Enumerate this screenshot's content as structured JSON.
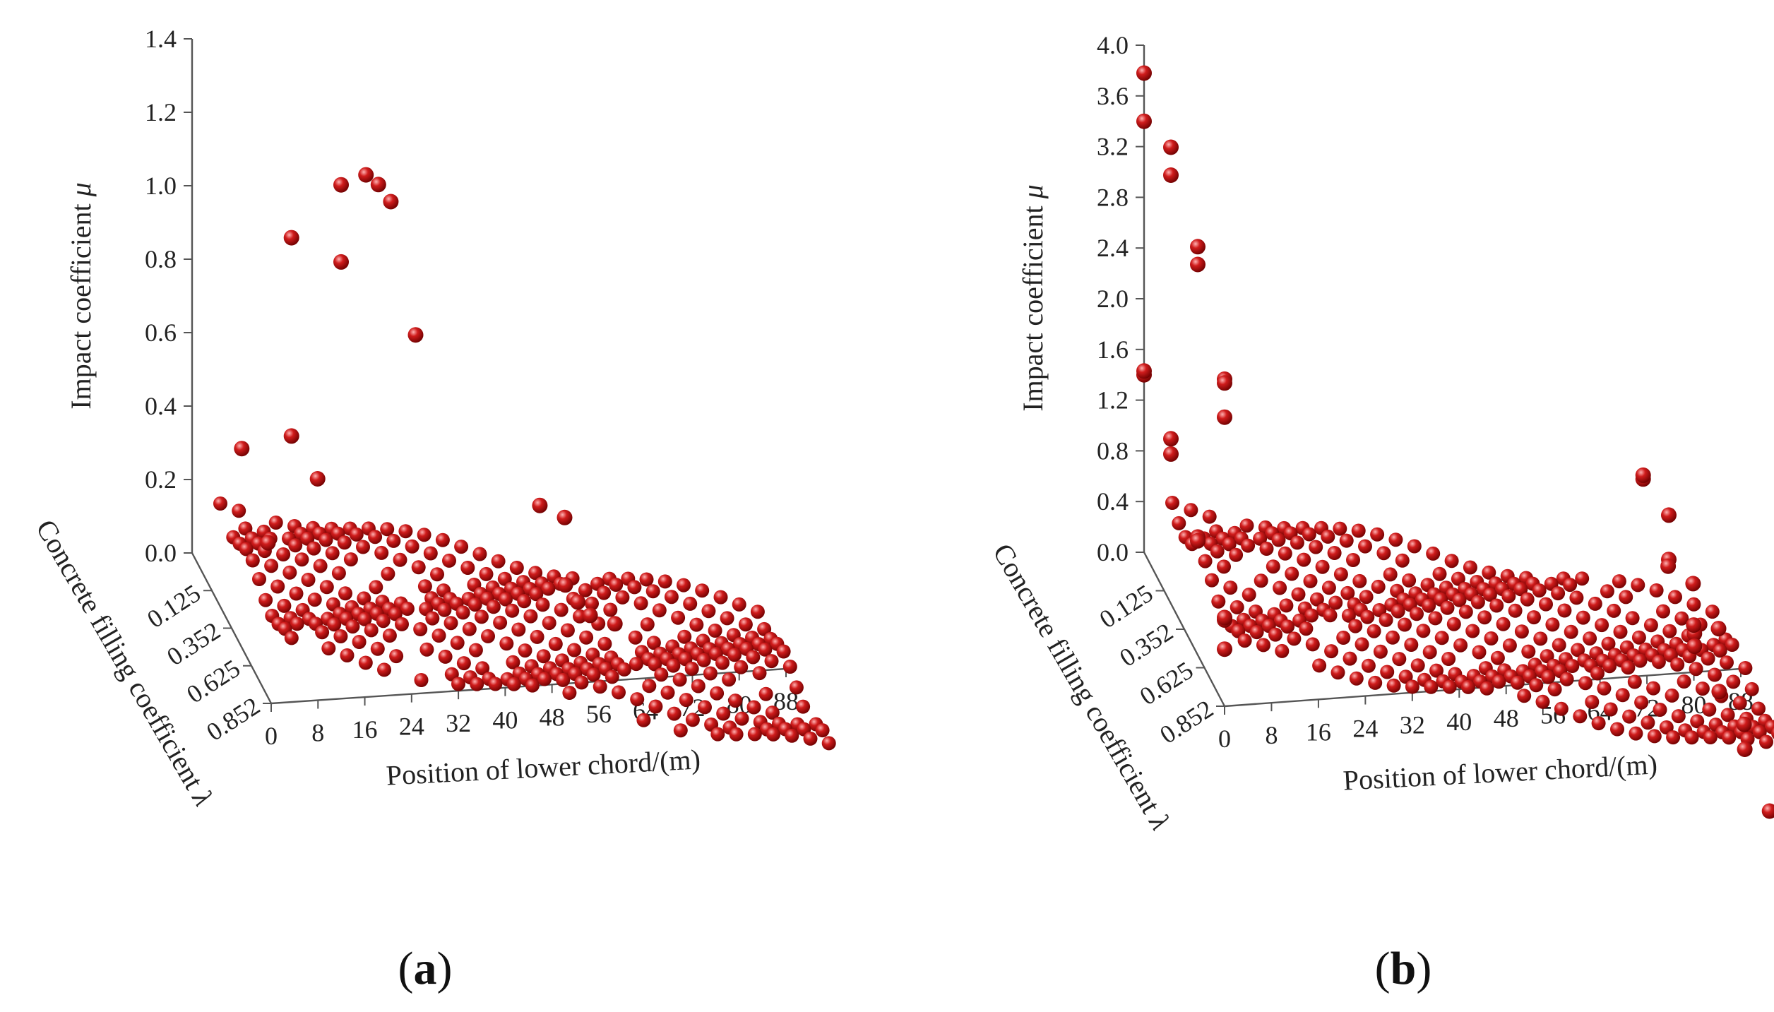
{
  "figure": {
    "point_color": "#d01c1c",
    "point_highlight": "#ffb3b3",
    "point_shadow": "#6e0000"
  },
  "chart_data": [
    {
      "type": "scatter",
      "panel_label": "(a)",
      "panel_letter": "a",
      "title": "",
      "xlabel": "Position of lower chord/(m)",
      "ylabel": "Concrete filling coefficient λ",
      "ylabel_main": "Concrete filling coefficient ",
      "ylabel_symbol": "λ",
      "zlabel": "Impact coefficient μ",
      "zlabel_main": "Impact coefficient ",
      "zlabel_symbol": "μ",
      "x_ticks": [
        "0",
        "8",
        "16",
        "24",
        "32",
        "40",
        "48",
        "56",
        "64",
        "72",
        "80",
        "88"
      ],
      "y_ticks": [
        "0.125",
        "0.352",
        "0.625",
        "0.852"
      ],
      "z_ticks": [
        "0.0",
        "0.2",
        "0.4",
        "0.6",
        "0.8",
        "1.0",
        "1.2",
        "1.4"
      ],
      "xlim": [
        0,
        88
      ],
      "zlim": [
        0,
        1.4
      ],
      "grid": false,
      "series": [
        {
          "values": [
            {
              "x": 8,
              "y": 0.125,
              "z": 0.31
            },
            {
              "x": 8,
              "y": 0.352,
              "z": 0.19
            },
            {
              "x": 16,
              "y": 0.125,
              "z": 0.37
            },
            {
              "x": 16,
              "y": 0.352,
              "z": 0.39
            },
            {
              "x": 16,
              "y": 0.125,
              "z": 0.91
            },
            {
              "x": 24,
              "y": 0.125,
              "z": 0.87
            },
            {
              "x": 24,
              "y": 0.125,
              "z": 1.08
            },
            {
              "x": 28,
              "y": 0.125,
              "z": 1.12
            },
            {
              "x": 30,
              "y": 0.125,
              "z": 1.1
            },
            {
              "x": 32,
              "y": 0.125,
              "z": 1.06
            },
            {
              "x": 36,
              "y": 0.125,
              "z": 0.71
            },
            {
              "x": 56,
              "y": 0.125,
              "z": 0.31
            },
            {
              "x": 56,
              "y": 0.352,
              "z": 0.23
            },
            {
              "x": 58,
              "y": 0.352,
              "z": 0.19
            },
            {
              "x": 60,
              "y": 0.125,
              "z": 0.29
            },
            {
              "x": 60,
              "y": 0.352,
              "z": 0.16
            },
            {
              "x": 64,
              "y": 0.352,
              "z": 0.15
            }
          ]
        }
      ]
    },
    {
      "type": "scatter",
      "panel_label": "(b)",
      "panel_letter": "b",
      "title": "",
      "xlabel": "Position of lower chord/(m)",
      "ylabel": "Concrete filling coefficient λ",
      "ylabel_main": "Concrete filling coefficient ",
      "ylabel_symbol": "λ",
      "zlabel": "Impact coefficient μ",
      "zlabel_main": "Impact coefficient ",
      "zlabel_symbol": "μ",
      "x_ticks": [
        "0",
        "8",
        "16",
        "24",
        "32",
        "40",
        "48",
        "56",
        "64",
        "72",
        "80",
        "88"
      ],
      "y_ticks": [
        "0.125",
        "0.352",
        "0.625",
        "0.852"
      ],
      "z_ticks": [
        "0.0",
        "0.4",
        "0.8",
        "1.2",
        "1.6",
        "2.0",
        "2.4",
        "2.8",
        "3.2",
        "3.6",
        "4.0"
      ],
      "xlim": [
        0,
        88
      ],
      "zlim": [
        0,
        4.0
      ],
      "grid": false,
      "series": [
        {
          "values": [
            {
              "x": 0,
              "y": 0.125,
              "z": 3.4
            },
            {
              "x": 0,
              "y": 0.125,
              "z": 3.78
            },
            {
              "x": 0,
              "y": 0.352,
              "z": 3.6
            },
            {
              "x": 0,
              "y": 0.352,
              "z": 3.38
            },
            {
              "x": 0,
              "y": 0.625,
              "z": 3.22
            },
            {
              "x": 0,
              "y": 0.625,
              "z": 3.08
            },
            {
              "x": 0,
              "y": 0.852,
              "z": 2.58
            },
            {
              "x": 0,
              "y": 0.852,
              "z": 2.55
            },
            {
              "x": 0,
              "y": 0.852,
              "z": 2.28
            },
            {
              "x": 0,
              "y": 0.125,
              "z": 1.4
            },
            {
              "x": 0,
              "y": 0.125,
              "z": 1.43
            },
            {
              "x": 0,
              "y": 0.352,
              "z": 1.3
            },
            {
              "x": 0,
              "y": 0.352,
              "z": 1.18
            },
            {
              "x": 0,
              "y": 0.625,
              "z": 0.93
            },
            {
              "x": 0,
              "y": 0.625,
              "z": 0.9
            },
            {
              "x": 0,
              "y": 0.852,
              "z": 0.68
            },
            {
              "x": 0,
              "y": 0.852,
              "z": 0.7
            },
            {
              "x": 0,
              "y": 0.852,
              "z": 0.45
            },
            {
              "x": 80,
              "y": 0.125,
              "z": 1.33
            },
            {
              "x": 80,
              "y": 0.125,
              "z": 1.36
            },
            {
              "x": 80,
              "y": 0.352,
              "z": 1.45
            },
            {
              "x": 80,
              "y": 0.352,
              "z": 1.1
            },
            {
              "x": 80,
              "y": 0.625,
              "z": 0.92
            },
            {
              "x": 80,
              "y": 0.625,
              "z": 0.82
            },
            {
              "x": 84,
              "y": 0.125,
              "z": 0.68
            },
            {
              "x": 84,
              "y": 0.352,
              "z": 0.62
            },
            {
              "x": 84,
              "y": 0.625,
              "z": 0.5
            },
            {
              "x": 84,
              "y": 0.852,
              "z": 0.45
            },
            {
              "x": 88,
              "y": 0.125,
              "z": 0.58
            },
            {
              "x": 88,
              "y": 0.352,
              "z": 0.63
            },
            {
              "x": 88,
              "y": 0.625,
              "z": 0.28
            },
            {
              "x": 88,
              "y": 0.852,
              "z": 0.0
            }
          ]
        }
      ]
    }
  ]
}
